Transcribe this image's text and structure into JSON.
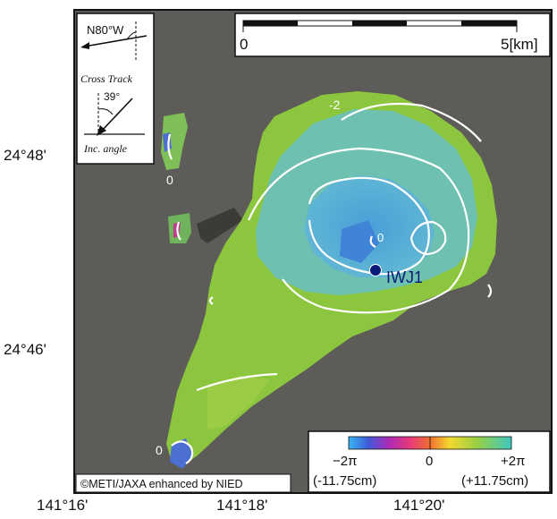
{
  "direction_box": {
    "heading": "N80°W",
    "cross_track": "Cross Track",
    "angle": "39°",
    "inc_angle": "Inc. angle"
  },
  "scale_bar": {
    "start": "0",
    "end": "5[km]"
  },
  "latitude_labels": [
    "24°48'",
    "24°46'"
  ],
  "longitude_labels": [
    "141°16'",
    "141°18'",
    "141°20'"
  ],
  "contours": {
    "minus_two": "-2",
    "zero_north": "0",
    "zero_center": "0",
    "zero_south": "0"
  },
  "station": {
    "label": "IWJ1",
    "color": "#0a1a7a"
  },
  "colorbar": {
    "left": "−2π",
    "mid": "0",
    "right": "+2π",
    "left_cm": "(-11.75cm)",
    "right_cm": "(+11.75cm)"
  },
  "credit": "©METI/JAXA enhanced by NIED",
  "colors": {
    "background": "#5d5c58",
    "island": "#8cc63f",
    "subsidence_core": "#4fa9d6",
    "contour": "#ffffff"
  }
}
